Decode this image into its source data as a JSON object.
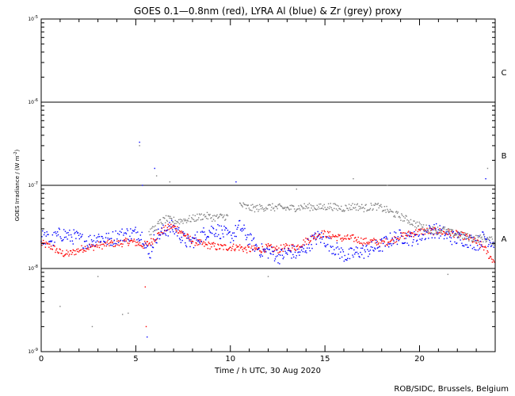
{
  "chart_data": {
    "type": "scatter",
    "title": "GOES 0.1—0.8nm (red), LYRA Al (blue) & Zr (grey) proxy",
    "xlabel": "Time / h UTC, 30 Aug 2020",
    "ylabel_main": "GOES Irradiance / (W m",
    "ylabel_sup": "-2",
    "ylabel_tail": ")",
    "xlim": [
      0,
      24
    ],
    "ylim": [
      1e-09,
      1e-05
    ],
    "yscale": "log",
    "x_ticks": [
      0,
      5,
      10,
      15,
      20
    ],
    "x_tick_labels": [
      "0",
      "5",
      "10",
      "15",
      "20"
    ],
    "y_ticks": [
      {
        "value": 1e-09,
        "base": "10",
        "exp": "-9"
      },
      {
        "value": 1e-08,
        "base": "10",
        "exp": "-8"
      },
      {
        "value": 1e-07,
        "base": "10",
        "exp": "-7"
      },
      {
        "value": 1e-06,
        "base": "10",
        "exp": "-6"
      },
      {
        "value": 1e-05,
        "base": "10",
        "exp": "-5"
      }
    ],
    "class_lines": [
      1e-08,
      1e-07,
      1e-06
    ],
    "class_labels": [
      {
        "label": "A",
        "value": 2.3e-08
      },
      {
        "label": "B",
        "value": 2.3e-07
      },
      {
        "label": "C",
        "value": 2.3e-06
      }
    ],
    "series": [
      {
        "color": "#ff0000",
        "points": [
          [
            0.0,
            2e-08
          ],
          [
            0.3,
            1.9e-08
          ],
          [
            0.6,
            1.8e-08
          ],
          [
            0.9,
            1.6e-08
          ],
          [
            1.2,
            1.5e-08
          ],
          [
            1.5,
            1.5e-08
          ],
          [
            1.8,
            1.6e-08
          ],
          [
            2.1,
            1.7e-08
          ],
          [
            2.4,
            1.8e-08
          ],
          [
            2.7,
            1.8e-08
          ],
          [
            3.0,
            1.9e-08
          ],
          [
            3.3,
            1.9e-08
          ],
          [
            3.6,
            2e-08
          ],
          [
            3.9,
            2e-08
          ],
          [
            4.2,
            2e-08
          ],
          [
            4.5,
            2.1e-08
          ],
          [
            4.8,
            2.1e-08
          ],
          [
            5.1,
            2e-08
          ],
          [
            5.4,
            1.9e-08
          ],
          [
            5.7,
            2e-08
          ],
          [
            6.0,
            2.3e-08
          ],
          [
            6.3,
            2.7e-08
          ],
          [
            6.6,
            3e-08
          ],
          [
            6.9,
            3.2e-08
          ],
          [
            7.2,
            3e-08
          ],
          [
            7.5,
            2.6e-08
          ],
          [
            7.8,
            2.3e-08
          ],
          [
            8.1,
            2.1e-08
          ],
          [
            8.4,
            2e-08
          ],
          [
            8.7,
            1.9e-08
          ],
          [
            9.0,
            1.9e-08
          ],
          [
            9.3,
            1.8e-08
          ],
          [
            9.6,
            1.8e-08
          ],
          [
            9.9,
            1.8e-08
          ],
          [
            10.2,
            1.8e-08
          ],
          [
            10.5,
            1.8e-08
          ],
          [
            10.8,
            1.7e-08
          ],
          [
            11.1,
            1.7e-08
          ],
          [
            11.4,
            1.7e-08
          ],
          [
            11.7,
            1.7e-08
          ],
          [
            12.0,
            1.8e-08
          ],
          [
            12.3,
            1.7e-08
          ],
          [
            12.6,
            1.7e-08
          ],
          [
            12.9,
            1.8e-08
          ],
          [
            13.2,
            1.8e-08
          ],
          [
            13.5,
            1.8e-08
          ],
          [
            13.8,
            2e-08
          ],
          [
            14.1,
            2.2e-08
          ],
          [
            14.4,
            2.4e-08
          ],
          [
            14.7,
            2.6e-08
          ],
          [
            15.0,
            2.6e-08
          ],
          [
            15.3,
            2.5e-08
          ],
          [
            15.6,
            2.4e-08
          ],
          [
            15.9,
            2.3e-08
          ],
          [
            16.2,
            2.3e-08
          ],
          [
            16.5,
            2.3e-08
          ],
          [
            16.8,
            2.2e-08
          ],
          [
            17.1,
            2.1e-08
          ],
          [
            17.4,
            2.1e-08
          ],
          [
            17.7,
            2.1e-08
          ],
          [
            18.0,
            2e-08
          ],
          [
            18.3,
            2.1e-08
          ],
          [
            18.6,
            2.2e-08
          ],
          [
            18.9,
            2.4e-08
          ],
          [
            19.2,
            2.5e-08
          ],
          [
            19.5,
            2.6e-08
          ],
          [
            19.8,
            2.7e-08
          ],
          [
            20.1,
            2.8e-08
          ],
          [
            20.4,
            2.8e-08
          ],
          [
            20.7,
            2.8e-08
          ],
          [
            21.0,
            2.8e-08
          ],
          [
            21.3,
            2.7e-08
          ],
          [
            21.6,
            2.7e-08
          ],
          [
            21.9,
            2.6e-08
          ],
          [
            22.2,
            2.5e-08
          ],
          [
            22.5,
            2.4e-08
          ],
          [
            22.8,
            2.2e-08
          ],
          [
            23.1,
            2e-08
          ],
          [
            23.4,
            1.8e-08
          ],
          [
            23.7,
            1.4e-08
          ],
          [
            24.0,
            1.2e-08
          ]
        ]
      },
      {
        "color": "#0000ff",
        "points": [
          [
            0.0,
            2.4e-08
          ],
          [
            0.3,
            2.3e-08
          ],
          [
            0.6,
            2.2e-08
          ],
          [
            0.9,
            2.5e-08
          ],
          [
            1.2,
            2.6e-08
          ],
          [
            1.5,
            2.4e-08
          ],
          [
            1.8,
            2.4e-08
          ],
          [
            2.1,
            2.2e-08
          ],
          [
            2.4,
            2.1e-08
          ],
          [
            2.7,
            2.2e-08
          ],
          [
            3.0,
            2.4e-08
          ],
          [
            3.3,
            2.3e-08
          ],
          [
            3.6,
            2.2e-08
          ],
          [
            3.9,
            2.4e-08
          ],
          [
            4.2,
            2.5e-08
          ],
          [
            4.5,
            2.6e-08
          ],
          [
            4.8,
            2.6e-08
          ],
          [
            5.1,
            2.7e-08
          ],
          [
            5.4,
            2.4e-08
          ],
          [
            5.7,
            1.4e-08
          ],
          [
            6.0,
            2.4e-08
          ],
          [
            6.3,
            2.6e-08
          ],
          [
            6.6,
            2.9e-08
          ],
          [
            6.9,
            3.1e-08
          ],
          [
            7.2,
            2.8e-08
          ],
          [
            7.5,
            2.3e-08
          ],
          [
            7.8,
            2e-08
          ],
          [
            8.1,
            2.2e-08
          ],
          [
            8.4,
            2.4e-08
          ],
          [
            8.7,
            2.7e-08
          ],
          [
            9.0,
            2.9e-08
          ],
          [
            9.3,
            2.9e-08
          ],
          [
            9.6,
            2.7e-08
          ],
          [
            9.9,
            2.4e-08
          ],
          [
            10.2,
            2.6e-08
          ],
          [
            10.5,
            3.2e-08
          ],
          [
            10.8,
            2.6e-08
          ],
          [
            11.1,
            2.1e-08
          ],
          [
            11.4,
            1.8e-08
          ],
          [
            11.7,
            1.6e-08
          ],
          [
            12.0,
            1.6e-08
          ],
          [
            12.3,
            1.5e-08
          ],
          [
            12.6,
            1.4e-08
          ],
          [
            12.9,
            1.5e-08
          ],
          [
            13.2,
            1.6e-08
          ],
          [
            13.5,
            1.5e-08
          ],
          [
            13.8,
            1.6e-08
          ],
          [
            14.1,
            1.9e-08
          ],
          [
            14.4,
            2.2e-08
          ],
          [
            14.7,
            2.4e-08
          ],
          [
            15.0,
            2.2e-08
          ],
          [
            15.3,
            1.9e-08
          ],
          [
            15.6,
            1.7e-08
          ],
          [
            15.9,
            1.5e-08
          ],
          [
            16.2,
            1.4e-08
          ],
          [
            16.5,
            1.5e-08
          ],
          [
            16.8,
            1.6e-08
          ],
          [
            17.1,
            1.6e-08
          ],
          [
            17.4,
            1.7e-08
          ],
          [
            17.7,
            1.8e-08
          ],
          [
            18.0,
            1.9e-08
          ],
          [
            18.3,
            2.1e-08
          ],
          [
            18.6,
            2.3e-08
          ],
          [
            18.9,
            2.4e-08
          ],
          [
            19.2,
            2.4e-08
          ],
          [
            19.5,
            2.3e-08
          ],
          [
            19.8,
            2.3e-08
          ],
          [
            20.1,
            2.5e-08
          ],
          [
            20.4,
            2.7e-08
          ],
          [
            20.7,
            2.9e-08
          ],
          [
            21.0,
            2.8e-08
          ],
          [
            21.3,
            2.6e-08
          ],
          [
            21.6,
            2.4e-08
          ],
          [
            21.9,
            2.3e-08
          ],
          [
            22.2,
            2.3e-08
          ],
          [
            22.5,
            2.2e-08
          ],
          [
            22.8,
            2.1e-08
          ],
          [
            23.1,
            2e-08
          ],
          [
            23.4,
            2.4e-08
          ],
          [
            23.7,
            2.2e-08
          ],
          [
            24.0,
            2e-08
          ]
        ]
      },
      {
        "color": "#808080",
        "points": [
          [
            5.7,
            2.7e-08
          ],
          [
            6.0,
            3e-08
          ],
          [
            6.3,
            3.6e-08
          ],
          [
            6.6,
            3.9e-08
          ],
          [
            6.9,
            3.8e-08
          ],
          [
            7.2,
            3.7e-08
          ],
          [
            7.5,
            3.8e-08
          ],
          [
            7.8,
            3.9e-08
          ],
          [
            8.1,
            4e-08
          ],
          [
            8.4,
            4.2e-08
          ],
          [
            8.7,
            4.3e-08
          ],
          [
            9.0,
            4.1e-08
          ],
          [
            9.3,
            4.1e-08
          ],
          [
            9.6,
            4.2e-08
          ],
          [
            9.9,
            4.2e-08
          ],
          [
            10.5,
            5.9e-08
          ],
          [
            10.8,
            5.5e-08
          ],
          [
            11.1,
            5.3e-08
          ],
          [
            11.4,
            5.3e-08
          ],
          [
            11.7,
            5.4e-08
          ],
          [
            12.0,
            5.5e-08
          ],
          [
            12.3,
            5.4e-08
          ],
          [
            12.6,
            5.4e-08
          ],
          [
            12.9,
            5.3e-08
          ],
          [
            13.2,
            5.3e-08
          ],
          [
            13.5,
            5.4e-08
          ],
          [
            13.8,
            5.5e-08
          ],
          [
            14.1,
            5.5e-08
          ],
          [
            14.4,
            5.5e-08
          ],
          [
            14.7,
            5.4e-08
          ],
          [
            15.0,
            5.5e-08
          ],
          [
            15.3,
            5.6e-08
          ],
          [
            15.6,
            5.4e-08
          ],
          [
            15.9,
            5.3e-08
          ],
          [
            16.2,
            5.4e-08
          ],
          [
            16.5,
            5.6e-08
          ],
          [
            16.8,
            5.5e-08
          ],
          [
            17.1,
            5.3e-08
          ],
          [
            17.4,
            5.5e-08
          ],
          [
            17.7,
            5.6e-08
          ],
          [
            18.0,
            5.3e-08
          ],
          [
            18.3,
            5e-08
          ],
          [
            18.6,
            4.6e-08
          ],
          [
            18.9,
            4.3e-08
          ],
          [
            19.2,
            4e-08
          ],
          [
            19.5,
            3.7e-08
          ],
          [
            19.8,
            3.4e-08
          ],
          [
            20.1,
            3.2e-08
          ],
          [
            20.4,
            3e-08
          ],
          [
            20.7,
            2.9e-08
          ],
          [
            21.0,
            2.9e-08
          ],
          [
            21.3,
            2.9e-08
          ],
          [
            21.6,
            2.7e-08
          ],
          [
            21.9,
            2.6e-08
          ],
          [
            22.2,
            2.5e-08
          ],
          [
            22.5,
            2.4e-08
          ],
          [
            22.8,
            2.3e-08
          ],
          [
            23.1,
            2.3e-08
          ],
          [
            23.4,
            2.3e-08
          ],
          [
            23.7,
            2.2e-08
          ],
          [
            24.0,
            2.1e-08
          ]
        ]
      }
    ],
    "isolated_points": [
      {
        "x": 5.2,
        "y": 3.3e-07,
        "color": "#0000ff"
      },
      {
        "x": 5.2,
        "y": 3e-07,
        "color": "#808080"
      },
      {
        "x": 5.35,
        "y": 1e-07,
        "color": "#0000ff"
      },
      {
        "x": 5.5,
        "y": 6e-09,
        "color": "#ff0000"
      },
      {
        "x": 5.55,
        "y": 2e-09,
        "color": "#ff0000"
      },
      {
        "x": 5.6,
        "y": 1.5e-09,
        "color": "#0000ff"
      },
      {
        "x": 6.0,
        "y": 1.6e-07,
        "color": "#0000ff"
      },
      {
        "x": 6.1,
        "y": 1.3e-07,
        "color": "#808080"
      },
      {
        "x": 1.0,
        "y": 3.5e-09,
        "color": "#808080"
      },
      {
        "x": 2.7,
        "y": 2e-09,
        "color": "#808080"
      },
      {
        "x": 3.0,
        "y": 8e-09,
        "color": "#808080"
      },
      {
        "x": 4.3,
        "y": 2.8e-09,
        "color": "#808080"
      },
      {
        "x": 4.6,
        "y": 2.9e-09,
        "color": "#808080"
      },
      {
        "x": 6.8,
        "y": 1.1e-07,
        "color": "#808080"
      },
      {
        "x": 10.3,
        "y": 1.1e-07,
        "color": "#0000ff"
      },
      {
        "x": 12.0,
        "y": 8e-09,
        "color": "#808080"
      },
      {
        "x": 13.5,
        "y": 9e-08,
        "color": "#808080"
      },
      {
        "x": 16.5,
        "y": 1.2e-07,
        "color": "#808080"
      },
      {
        "x": 18.3,
        "y": 1e-07,
        "color": "#808080"
      },
      {
        "x": 21.5,
        "y": 8.5e-09,
        "color": "#808080"
      },
      {
        "x": 23.6,
        "y": 1.6e-07,
        "color": "#808080"
      },
      {
        "x": 23.5,
        "y": 1.2e-07,
        "color": "#0000ff"
      }
    ],
    "grid": false,
    "legend": "none"
  },
  "footer": {
    "credit": "ROB/SIDC, Brussels, Belgium"
  }
}
